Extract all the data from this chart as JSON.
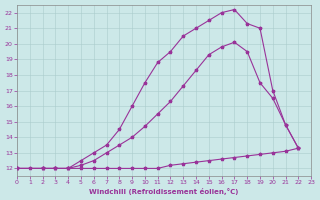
{
  "background_color": "#cce8e8",
  "line_color": "#993399",
  "xlim": [
    0,
    23
  ],
  "ylim": [
    11.5,
    22.5
  ],
  "xticks": [
    0,
    1,
    2,
    3,
    4,
    5,
    6,
    7,
    8,
    9,
    10,
    11,
    12,
    13,
    14,
    15,
    16,
    17,
    18,
    19,
    20,
    21,
    22,
    23
  ],
  "yticks": [
    12,
    13,
    14,
    15,
    16,
    17,
    18,
    19,
    20,
    21,
    22
  ],
  "xlabel": "Windchill (Refroidissement éolien,°C)",
  "curve_flat_x": [
    0,
    1,
    2,
    3,
    4,
    5,
    6,
    7,
    8,
    9,
    10,
    11,
    12,
    13,
    14,
    15,
    16,
    17,
    18,
    19,
    20,
    21,
    22
  ],
  "curve_flat_y": [
    12,
    12,
    12,
    12,
    12,
    12,
    12,
    12,
    12,
    12,
    12,
    12,
    12.2,
    12.3,
    12.4,
    12.5,
    12.6,
    12.7,
    12.8,
    12.9,
    13.0,
    13.1,
    13.3
  ],
  "curve_mid_x": [
    0,
    2,
    3,
    4,
    5,
    6,
    7,
    8,
    9,
    10,
    11,
    12,
    13,
    14,
    15,
    16,
    17,
    18,
    19,
    20,
    21,
    22
  ],
  "curve_mid_y": [
    12,
    12,
    12,
    12,
    12.2,
    12.5,
    13.0,
    13.5,
    14.0,
    14.7,
    15.5,
    16.3,
    17.3,
    18.3,
    19.3,
    19.8,
    20.1,
    19.5,
    17.5,
    16.5,
    14.8,
    13.3
  ],
  "curve_top_x": [
    0,
    2,
    3,
    4,
    5,
    6,
    7,
    8,
    9,
    10,
    11,
    12,
    13,
    14,
    15,
    16,
    17,
    18,
    19,
    20,
    21,
    22
  ],
  "curve_top_y": [
    12,
    12,
    12,
    12,
    12.5,
    13.0,
    13.5,
    14.5,
    16.0,
    17.5,
    18.8,
    19.5,
    20.5,
    21.0,
    21.5,
    22.0,
    22.2,
    21.3,
    21.0,
    17.0,
    14.8,
    13.3
  ]
}
